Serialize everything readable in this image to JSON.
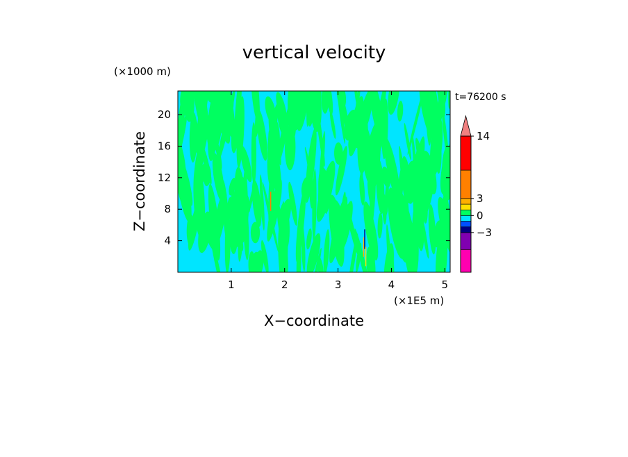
{
  "chart_data": {
    "type": "heatmap",
    "title": "vertical velocity",
    "xlabel": "X−coordinate",
    "ylabel": "Z−coordinate",
    "x_unit_label": "(×1E5 m)",
    "y_unit_label": "(×1000 m)",
    "time_label": "t=76200 s",
    "xlim": [
      0,
      5.1
    ],
    "ylim": [
      0,
      23
    ],
    "x_ticks": [
      "1",
      "2",
      "3",
      "4",
      "5"
    ],
    "y_ticks": [
      "4",
      "8",
      "12",
      "16",
      "20"
    ],
    "background_level_color": "#00e5ff",
    "secondary_level_color": "#00ff60",
    "hotspots": [
      {
        "x": 1.74,
        "z": 9.0,
        "color": "#ff8000"
      },
      {
        "x": 3.48,
        "z": 3.2,
        "color": "#ffb000"
      },
      {
        "x": 3.5,
        "z": 4.2,
        "color": "#000080"
      },
      {
        "x": 3.52,
        "z": 2.0,
        "color": "#ffe000"
      }
    ],
    "colorbar": {
      "tick_labels": [
        "14",
        "3",
        "0",
        "−3"
      ],
      "tick_values": [
        14,
        3,
        0,
        -3
      ],
      "levels": [
        {
          "color": "#ff00b0",
          "lo": -10,
          "hi": -6
        },
        {
          "color": "#8000b0",
          "lo": -6,
          "hi": -3
        },
        {
          "color": "#000080",
          "lo": -3,
          "hi": -2
        },
        {
          "color": "#0050ff",
          "lo": -2,
          "hi": -1
        },
        {
          "color": "#00e5ff",
          "lo": -1,
          "hi": 0
        },
        {
          "color": "#00ff60",
          "lo": 0,
          "hi": 1
        },
        {
          "color": "#ffe000",
          "lo": 1,
          "hi": 2
        },
        {
          "color": "#ffb000",
          "lo": 2,
          "hi": 3
        },
        {
          "color": "#ff8000",
          "lo": 3,
          "hi": 8
        },
        {
          "color": "#ff0000",
          "lo": 8,
          "hi": 14
        },
        {
          "color": "#f08080",
          "lo": 14,
          "hi": 20
        }
      ]
    }
  }
}
